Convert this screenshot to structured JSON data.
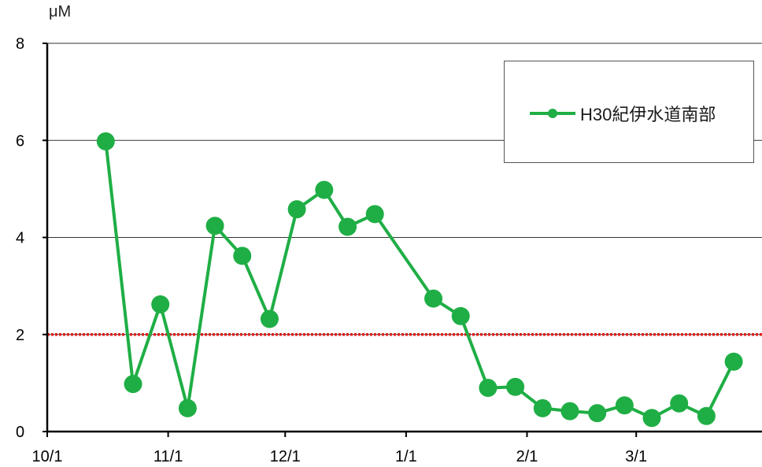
{
  "chart_data": {
    "type": "line",
    "y_unit": "μM",
    "ylim": [
      0,
      8
    ],
    "yticks": [
      0,
      2,
      4,
      6,
      8
    ],
    "x_ticks": [
      {
        "date": "2018-10-01",
        "label": "10/1"
      },
      {
        "date": "2018-11-01",
        "label": "11/1"
      },
      {
        "date": "2018-12-01",
        "label": "12/1"
      },
      {
        "date": "2019-01-01",
        "label": "1/1"
      },
      {
        "date": "2019-02-01",
        "label": "2/1"
      },
      {
        "date": "2019-03-01",
        "label": "3/1"
      }
    ],
    "x_range": [
      "2018-10-01",
      "2019-03-28"
    ],
    "grid": "horizontal",
    "legend_position": "top-right",
    "reference_line": {
      "y": 2,
      "color": "#e0201b",
      "style": "dotted"
    },
    "series": [
      {
        "name": "H30紀伊水道南部",
        "color": "#1fae45",
        "points": [
          {
            "x": "2018-10-16",
            "y": 5.98
          },
          {
            "x": "2018-10-23",
            "y": 0.98
          },
          {
            "x": "2018-10-30",
            "y": 2.62
          },
          {
            "x": "2018-11-06",
            "y": 0.48
          },
          {
            "x": "2018-11-13",
            "y": 4.24
          },
          {
            "x": "2018-11-20",
            "y": 3.62
          },
          {
            "x": "2018-11-27",
            "y": 2.32
          },
          {
            "x": "2018-12-04",
            "y": 4.58
          },
          {
            "x": "2018-12-11",
            "y": 4.98
          },
          {
            "x": "2018-12-17",
            "y": 4.22
          },
          {
            "x": "2018-12-24",
            "y": 4.48
          },
          {
            "x": "2019-01-08",
            "y": 2.74
          },
          {
            "x": "2019-01-15",
            "y": 2.38
          },
          {
            "x": "2019-01-22",
            "y": 0.9
          },
          {
            "x": "2019-01-29",
            "y": 0.92
          },
          {
            "x": "2019-02-05",
            "y": 0.48
          },
          {
            "x": "2019-02-12",
            "y": 0.42
          },
          {
            "x": "2019-02-19",
            "y": 0.38
          },
          {
            "x": "2019-02-26",
            "y": 0.54
          },
          {
            "x": "2019-03-05",
            "y": 0.28
          },
          {
            "x": "2019-03-12",
            "y": 0.58
          },
          {
            "x": "2019-03-19",
            "y": 0.32
          },
          {
            "x": "2019-03-26",
            "y": 1.44
          }
        ]
      }
    ]
  }
}
